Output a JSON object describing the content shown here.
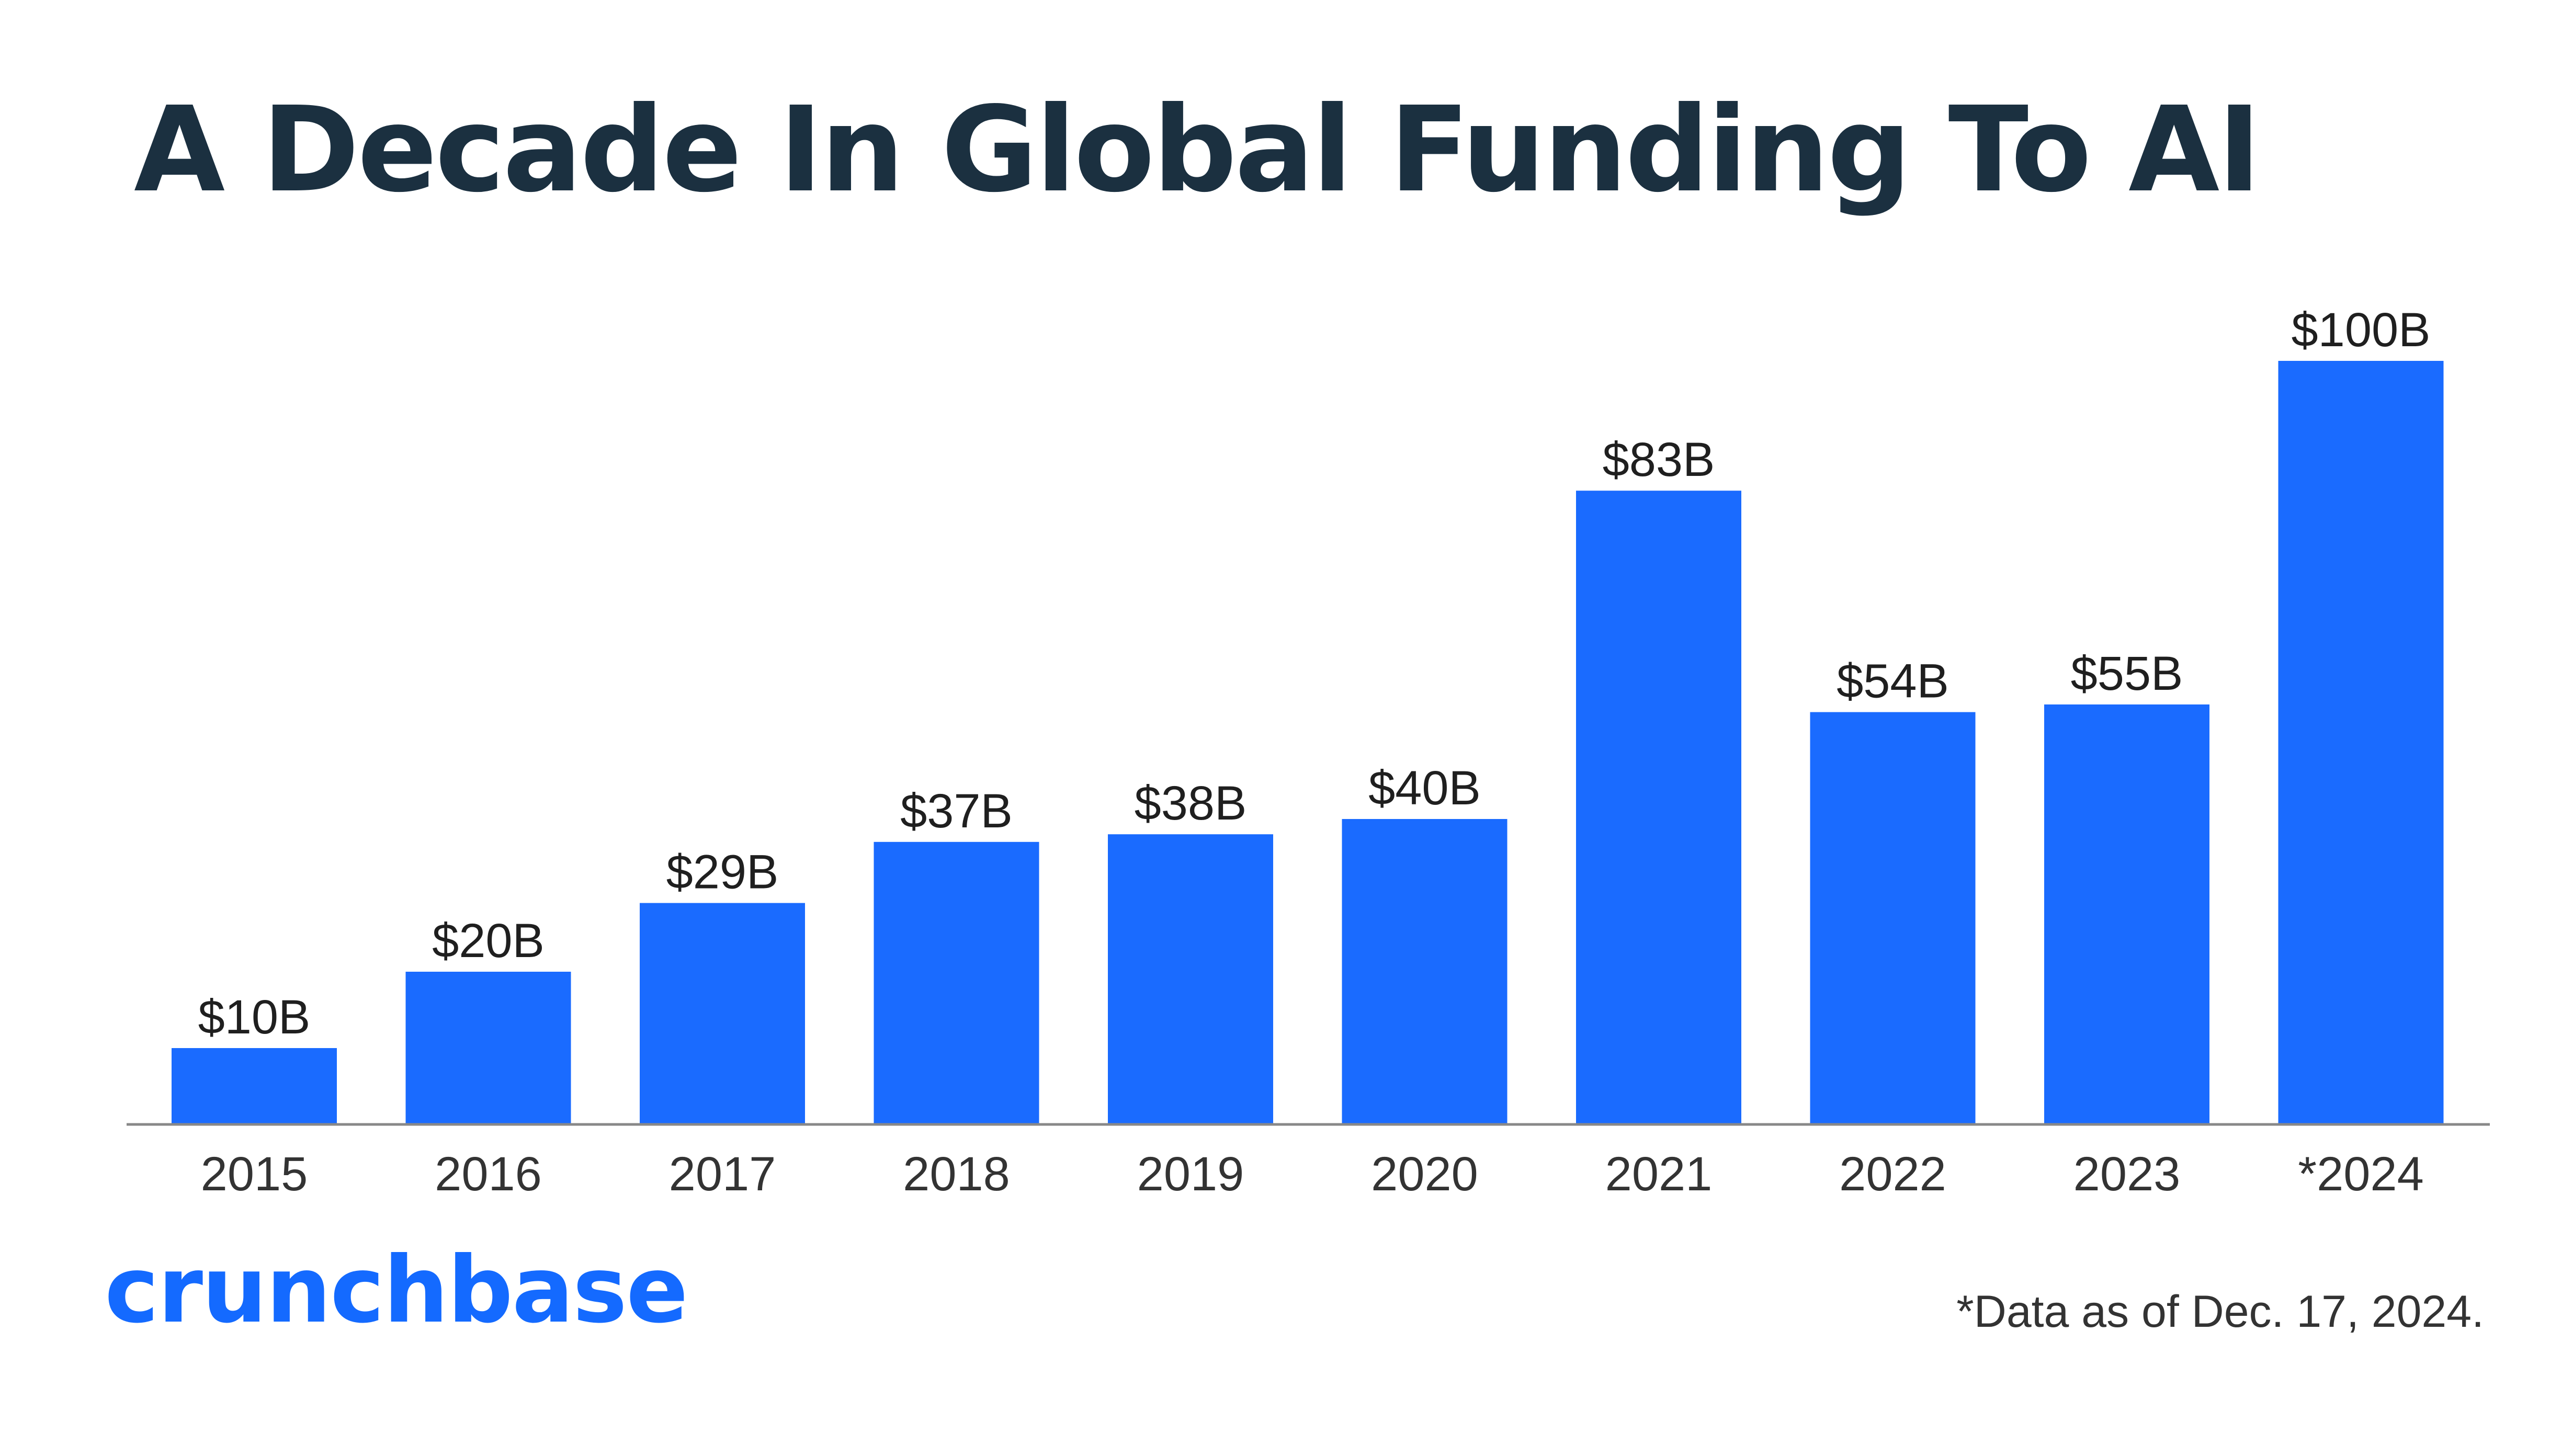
{
  "colors": {
    "bar": "#1a6bff",
    "title": "#1b3040",
    "axis": "#888888",
    "brand": "#146aff"
  },
  "brand": {
    "logo_text": "crunchbase"
  },
  "footnote": "*Data as of Dec. 17, 2024.",
  "chart_data": {
    "type": "bar",
    "title": "A Decade In Global Funding To AI",
    "xlabel": "",
    "ylabel": "",
    "categories": [
      "2015",
      "2016",
      "2017",
      "2018",
      "2019",
      "2020",
      "2021",
      "2022",
      "2023",
      "*2024"
    ],
    "values": [
      10,
      20,
      29,
      37,
      38,
      40,
      83,
      54,
      55,
      100
    ],
    "data_labels": [
      "$10B",
      "$20B",
      "$29B",
      "$37B",
      "$38B",
      "$40B",
      "$83B",
      "$54B",
      "$55B",
      "$100B"
    ],
    "unit": "$B",
    "ylim": [
      0,
      100
    ],
    "grid": false,
    "legend": "none"
  }
}
